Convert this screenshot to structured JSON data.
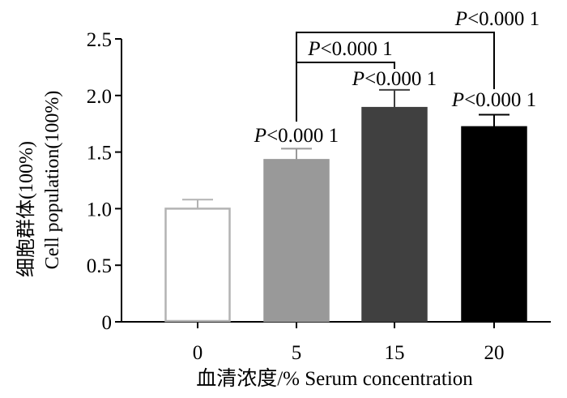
{
  "chart_data": {
    "type": "bar",
    "categories": [
      "0",
      "5",
      "15",
      "20"
    ],
    "values": [
      1.0,
      1.43,
      1.89,
      1.72
    ],
    "errors": [
      0.08,
      0.1,
      0.16,
      0.11
    ],
    "bar_colors": [
      "#ffffff",
      "#999999",
      "#404040",
      "#000000"
    ],
    "bar_edge_colors": [
      "#b3b3b3",
      "#999999",
      "#404040",
      "#000000"
    ],
    "ylim": [
      0,
      2.5
    ],
    "yticks": [
      "0",
      "0.5",
      "1.0",
      "1.5",
      "2.0",
      "2.5"
    ],
    "ylabel_cn": "细胞群体(100%)",
    "ylabel_en": "Cell population(100%)",
    "xlabel": "血清浓度/% Serum concentration",
    "bar_labels": [
      {
        "index": 1,
        "prefix": "P",
        "text": "<0.000 1"
      },
      {
        "index": 2,
        "prefix": "P",
        "text": "<0.000 1"
      },
      {
        "index": 3,
        "prefix": "P",
        "text": "<0.000 1"
      }
    ],
    "brackets": [
      {
        "from": 1,
        "to": 2,
        "prefix": "P",
        "text": "<0.000 1"
      },
      {
        "from": 1,
        "to": 3,
        "prefix": "P",
        "text": "<0.000 1"
      }
    ],
    "grid": false
  }
}
